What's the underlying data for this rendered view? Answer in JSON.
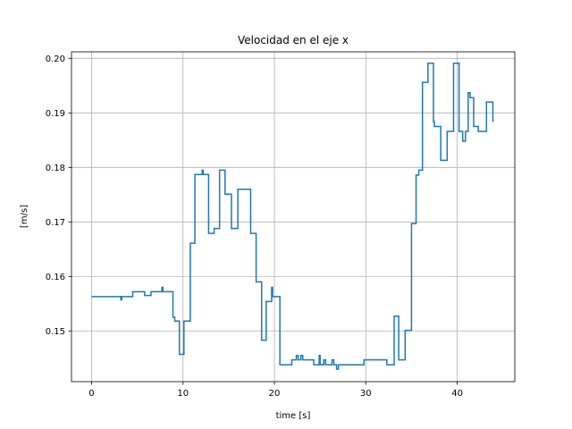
{
  "chart_data": {
    "type": "line",
    "title": "Velocidad en el eje x",
    "xlabel": "time [s]",
    "ylabel": "[m/s]",
    "xlim": [
      -2.2,
      46.3
    ],
    "ylim": [
      0.1407,
      0.2012
    ],
    "x_ticks": [
      0,
      10,
      20,
      30,
      40
    ],
    "y_ticks": [
      0.15,
      0.16,
      0.17,
      0.18,
      0.19,
      0.2
    ],
    "x_tick_labels": [
      "0",
      "10",
      "20",
      "30",
      "40"
    ],
    "y_tick_labels": [
      "0.15",
      "0.16",
      "0.17",
      "0.18",
      "0.19",
      "0.20"
    ],
    "grid": true,
    "series": [
      {
        "color": "#1f77b4",
        "step": true,
        "x": [
          0,
          3.2,
          3.3,
          4.5,
          5.8,
          6.5,
          7.7,
          7.8,
          8.9,
          9.1,
          9.6,
          10.1,
          10.8,
          11.3,
          12.1,
          12.2,
          12.4,
          12.8,
          13.4,
          14.0,
          14.6,
          15.3,
          16.0,
          17.4,
          18.0,
          18.6,
          19.1,
          19.7,
          19.8,
          20.0,
          20.6,
          21.9,
          22.4,
          22.6,
          22.9,
          23.1,
          23.7,
          24.3,
          24.9,
          25.0,
          25.4,
          25.6,
          26.3,
          26.5,
          26.8,
          27.0,
          28.5,
          29.4,
          29.8,
          32.3,
          33.1,
          33.6,
          34.3,
          35.0,
          35.5,
          35.8,
          36.2,
          36.4,
          36.8,
          37.4,
          37.5,
          37.9,
          38.2,
          38.9,
          39.6,
          39.7,
          40.2,
          40.6,
          40.9,
          41.2,
          41.4,
          41.8,
          42.3,
          43.2,
          43.4,
          43.9,
          44.0
        ],
        "values": [
          0.1563,
          0.1557,
          0.1563,
          0.1572,
          0.1565,
          0.1572,
          0.158,
          0.1572,
          0.1525,
          0.1518,
          0.1457,
          0.1518,
          0.1661,
          0.1787,
          0.1795,
          0.1787,
          0.1787,
          0.1679,
          0.1688,
          0.1795,
          0.1751,
          0.1688,
          0.176,
          0.1679,
          0.159,
          0.1483,
          0.1554,
          0.158,
          0.1563,
          0.1563,
          0.1438,
          0.1447,
          0.1455,
          0.1447,
          0.1455,
          0.1447,
          0.1447,
          0.1438,
          0.1455,
          0.1438,
          0.1447,
          0.1438,
          0.1447,
          0.1438,
          0.143,
          0.1438,
          0.1438,
          0.1438,
          0.1447,
          0.1438,
          0.1527,
          0.1447,
          0.1501,
          0.1697,
          0.1786,
          0.1795,
          0.1956,
          0.1956,
          0.1991,
          0.1884,
          0.1875,
          0.1875,
          0.1813,
          0.1866,
          0.1991,
          0.1991,
          0.1866,
          0.1848,
          0.1866,
          0.1937,
          0.1928,
          0.1875,
          0.1866,
          0.192,
          0.192,
          0.1885,
          0.1885
        ]
      }
    ]
  }
}
